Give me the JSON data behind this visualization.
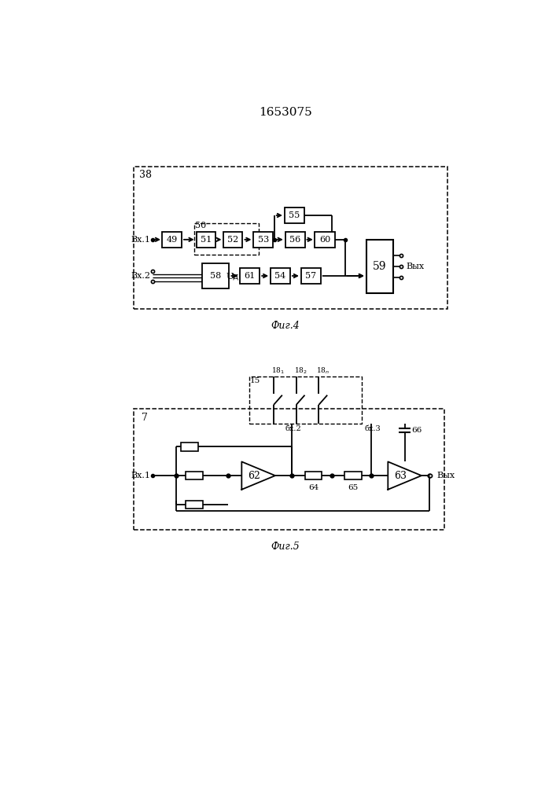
{
  "title": "1653075",
  "fig4_label": "Фиг.4",
  "fig5_label": "Фиг.5",
  "bg_color": "#ffffff",
  "line_color": "#000000"
}
